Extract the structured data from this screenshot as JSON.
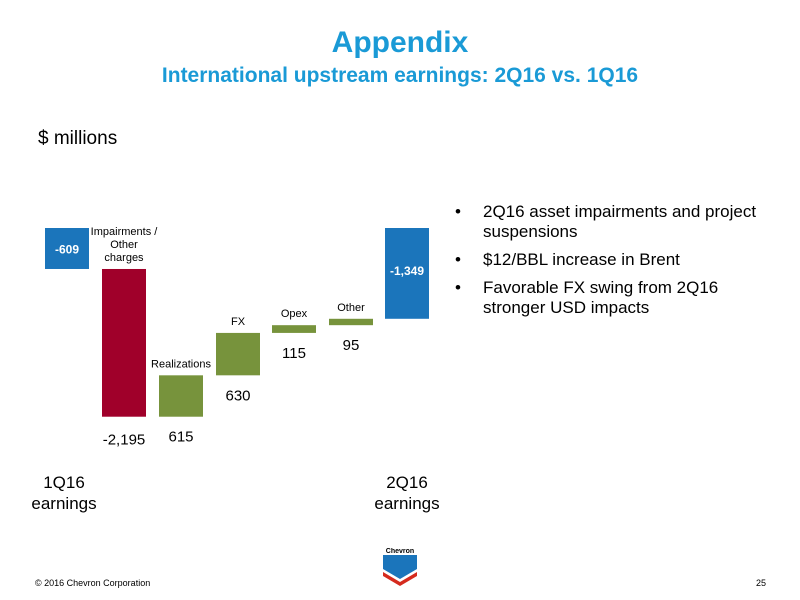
{
  "header": {
    "title": "Appendix",
    "subtitle": "International upstream earnings: 2Q16 vs. 1Q16"
  },
  "units_label": "$ millions",
  "chart_data": {
    "type": "waterfall",
    "title": "International upstream earnings: 2Q16 vs. 1Q16",
    "ylabel": "$ millions",
    "steps": [
      {
        "key": "start",
        "kind": "total",
        "name_lines": [],
        "value": -609,
        "label": "-609",
        "color": "#1b75bb",
        "start_label": [
          "1Q16",
          "earnings"
        ]
      },
      {
        "key": "impairments",
        "kind": "delta",
        "name_lines": [
          "Impairments /",
          "Other",
          "charges"
        ],
        "value": -2195,
        "label": "-2,195",
        "color": "#a0002a"
      },
      {
        "key": "realizations",
        "kind": "delta",
        "name_lines": [
          "Realizations"
        ],
        "value": 615,
        "label": "615",
        "color": "#77933c"
      },
      {
        "key": "fx",
        "kind": "delta",
        "name_lines": [
          "FX"
        ],
        "value": 630,
        "label": "630",
        "color": "#77933c"
      },
      {
        "key": "opex",
        "kind": "delta",
        "name_lines": [
          "Opex"
        ],
        "value": 115,
        "label": "115",
        "color": "#77933c"
      },
      {
        "key": "other",
        "kind": "delta",
        "name_lines": [
          "Other"
        ],
        "value": 95,
        "label": "95",
        "color": "#77933c"
      },
      {
        "key": "end",
        "kind": "total",
        "name_lines": [],
        "value": -1349,
        "label": "-1,349",
        "color": "#1b75bb",
        "end_label": [
          "2Q16",
          "earnings"
        ]
      }
    ]
  },
  "bullets": [
    "2Q16 asset impairments and project suspensions",
    "$12/BBL increase in Brent",
    "Favorable FX swing from 2Q16 stronger USD impacts"
  ],
  "bullet_symbol": "•",
  "logo": {
    "text": "Chevron",
    "icon": "chevron-logo-icon",
    "colors": {
      "blue": "#1b75bb",
      "red": "#d52b1e"
    }
  },
  "footer": {
    "copyright": "© 2016 Chevron Corporation",
    "page_number": "25"
  }
}
